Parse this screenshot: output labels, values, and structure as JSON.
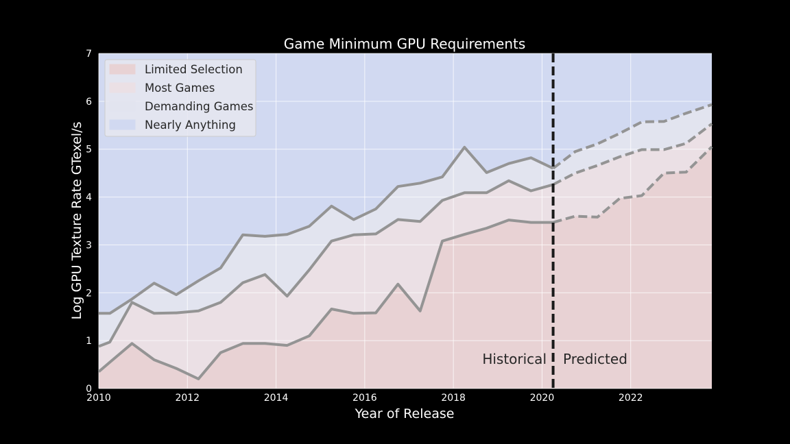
{
  "chart_data": {
    "type": "area",
    "title": "Game Minimum GPU Requirements",
    "xlabel": "Year of Release",
    "ylabel": "Log GPU Texture Rate GTexel/s",
    "xlim": [
      2010,
      2023.83
    ],
    "ylim": [
      0,
      7
    ],
    "xticks": [
      2010,
      2012,
      2014,
      2016,
      2018,
      2020,
      2022
    ],
    "yticks": [
      0,
      1,
      2,
      3,
      4,
      5,
      6,
      7
    ],
    "grid": true,
    "legend_position": "top-left",
    "split_x": 2020.25,
    "annotations": {
      "left": "Historical",
      "right": "Predicted"
    },
    "regions": [
      {
        "name": "Limited Selection",
        "color": "#e8d2d4"
      },
      {
        "name": "Most Games",
        "color": "#ebe0e5"
      },
      {
        "name": "Demanding Games",
        "color": "#e2e4ef"
      },
      {
        "name": "Nearly Anything",
        "color": "#d1d9f1"
      }
    ],
    "line_color": "#949494",
    "x": [
      2010.0,
      2010.25,
      2010.75,
      2011.25,
      2011.75,
      2012.25,
      2012.75,
      2013.25,
      2013.75,
      2014.25,
      2014.75,
      2015.25,
      2015.75,
      2016.25,
      2016.75,
      2017.25,
      2017.75,
      2018.25,
      2018.75,
      2019.25,
      2019.75,
      2020.25,
      2020.75,
      2021.25,
      2021.75,
      2022.25,
      2022.75,
      2023.25,
      2023.83
    ],
    "series": [
      {
        "values": [
          0.35,
          0.55,
          0.94,
          0.6,
          0.42,
          0.2,
          0.75,
          0.94,
          0.94,
          0.9,
          1.1,
          1.66,
          1.57,
          1.58,
          2.18,
          1.62,
          3.08,
          3.22,
          3.35,
          3.52,
          3.47,
          3.47,
          3.6,
          3.58,
          3.97,
          4.03,
          4.5,
          4.52,
          5.05
        ]
      },
      {
        "values": [
          0.88,
          0.97,
          1.8,
          1.57,
          1.58,
          1.62,
          1.8,
          2.21,
          2.38,
          1.93,
          2.48,
          3.08,
          3.21,
          3.23,
          3.53,
          3.49,
          3.93,
          4.09,
          4.09,
          4.34,
          4.13,
          4.26,
          4.5,
          4.66,
          4.84,
          4.99,
          4.99,
          5.12,
          5.53
        ]
      },
      {
        "values": [
          1.57,
          1.57,
          1.87,
          2.2,
          1.96,
          2.25,
          2.52,
          3.21,
          3.18,
          3.22,
          3.39,
          3.81,
          3.53,
          3.75,
          4.22,
          4.29,
          4.42,
          5.04,
          4.51,
          4.7,
          4.82,
          4.6,
          4.95,
          5.11,
          5.33,
          5.57,
          5.58,
          5.75,
          5.93
        ]
      }
    ]
  }
}
